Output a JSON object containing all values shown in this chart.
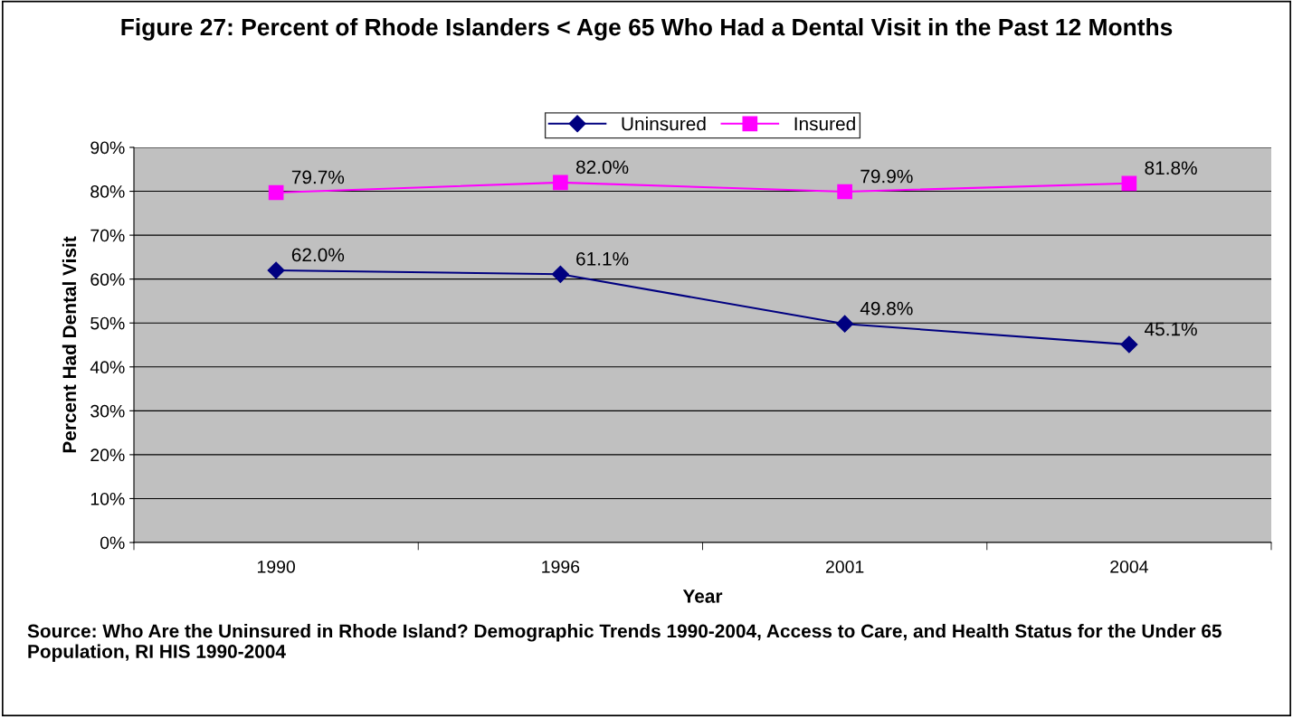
{
  "chart_data": {
    "type": "line",
    "title": "Figure 27: Percent of Rhode Islanders < Age 65 Who Had a Dental Visit in the Past 12 Months",
    "xlabel": "Year",
    "ylabel": "Percent Had Dental Visit",
    "categories": [
      "1990",
      "1996",
      "2001",
      "2004"
    ],
    "series": [
      {
        "name": "Uninsured",
        "color": "#000080",
        "marker": "diamond",
        "values": [
          62.0,
          61.1,
          49.8,
          45.1
        ],
        "value_labels": [
          "62.0%",
          "61.1%",
          "49.8%",
          "45.1%"
        ]
      },
      {
        "name": "Insured",
        "color": "#ff00ff",
        "marker": "square",
        "values": [
          79.7,
          82.0,
          79.9,
          81.8
        ],
        "value_labels": [
          "79.7%",
          "82.0%",
          "79.9%",
          "81.8%"
        ]
      }
    ],
    "ylim": [
      0,
      90
    ],
    "yticks": [
      {
        "value": 0,
        "label": "0%"
      },
      {
        "value": 10,
        "label": "10%"
      },
      {
        "value": 20,
        "label": "20%"
      },
      {
        "value": 30,
        "label": "30%"
      },
      {
        "value": 40,
        "label": "40%"
      },
      {
        "value": 50,
        "label": "50%"
      },
      {
        "value": 60,
        "label": "60%"
      },
      {
        "value": 70,
        "label": "70%"
      },
      {
        "value": 80,
        "label": "80%"
      },
      {
        "value": 90,
        "label": "90%"
      }
    ],
    "grid": "y",
    "legend": "top",
    "line_style": "solid",
    "annotations": [
      "Source: Who Are the Uninsured in Rhode Island? Demographic Trends 1990-2004, Access to Care, and Health Status for the Under 65 Population, RI HIS 1990-2004"
    ]
  }
}
